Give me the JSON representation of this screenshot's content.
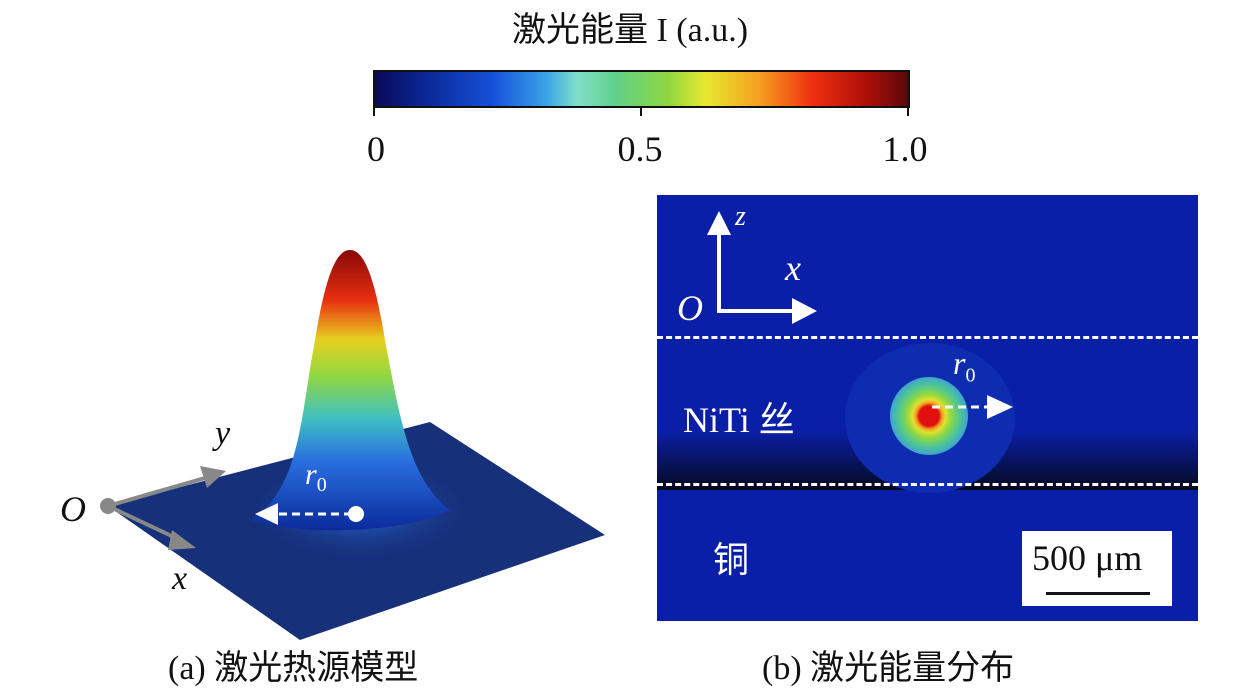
{
  "colorbar": {
    "title": "激光能量 I (a.u.)",
    "ticks": [
      "0",
      "0.5",
      "1.0"
    ],
    "range": [
      0,
      1
    ]
  },
  "panel_a": {
    "caption": "(a) 激光热源模型",
    "origin": "O",
    "axis_x": "x",
    "axis_y": "y",
    "radius": "r0",
    "radius_sub": "0"
  },
  "panel_b": {
    "caption": "(b) 激光能量分布",
    "origin": "O",
    "axis_x": "x",
    "axis_z": "z",
    "wire_label": "NiTi 丝",
    "substrate_label": "铜",
    "radius": "r",
    "radius_sub": "0",
    "scalebar": "500 μm"
  },
  "colors": {
    "field": "#0a1fa8"
  }
}
